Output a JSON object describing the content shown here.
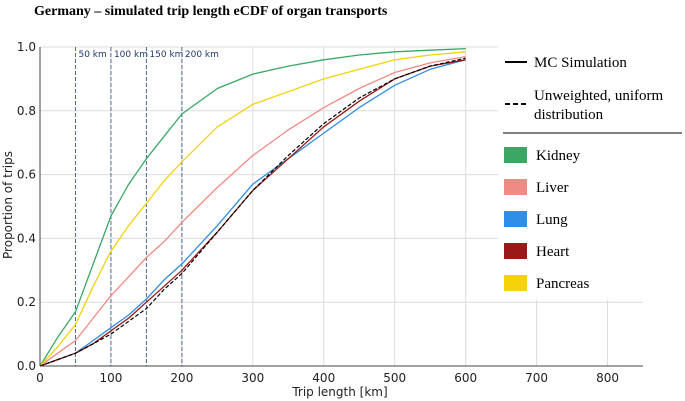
{
  "chart_data": {
    "type": "line",
    "title": "Germany – simulated  trip length  eCDF of organ transports",
    "xlabel": "Trip length [km]",
    "ylabel": "Proportion of trips",
    "xlim": [
      0,
      850
    ],
    "ylim": [
      0,
      1.0
    ],
    "x_ticks": [
      0,
      100,
      200,
      300,
      400,
      500,
      600,
      700,
      800
    ],
    "y_ticks": [
      0.0,
      0.2,
      0.4,
      0.6,
      0.8,
      1.0
    ],
    "y_tick_labels": [
      "0.0",
      "0.2",
      "0.4",
      "0.6",
      "0.8",
      "1.0"
    ],
    "grid": true,
    "reference_lines": [
      {
        "x": 50,
        "label": "50 km"
      },
      {
        "x": 100,
        "label": "100 km"
      },
      {
        "x": 150,
        "label": "150 km"
      },
      {
        "x": 200,
        "label": "200 km"
      }
    ],
    "legend": {
      "placement": "right",
      "line_styles": [
        {
          "label": "MC Simulation",
          "style": "solid"
        },
        {
          "label": "Unweighted,  uniform distribution",
          "label_lines": [
            "Unweighted,  uniform",
            "distribution"
          ],
          "style": "dashed"
        }
      ],
      "organs": [
        "Kidney",
        "Liver",
        "Lung",
        "Heart",
        "Pancreas"
      ]
    },
    "series": [
      {
        "name": "Kidney",
        "color": "#3aa864",
        "x": [
          0,
          25,
          50,
          75,
          100,
          125,
          150,
          175,
          200,
          250,
          300,
          350,
          400,
          450,
          500,
          550,
          600
        ],
        "y": [
          0.0,
          0.09,
          0.17,
          0.32,
          0.47,
          0.57,
          0.65,
          0.72,
          0.79,
          0.87,
          0.915,
          0.94,
          0.96,
          0.975,
          0.985,
          0.99,
          0.995
        ]
      },
      {
        "name": "Liver",
        "color": "#f08a84",
        "x": [
          0,
          25,
          50,
          75,
          100,
          125,
          150,
          175,
          200,
          250,
          300,
          350,
          400,
          450,
          500,
          550,
          600
        ],
        "y": [
          0.0,
          0.04,
          0.08,
          0.15,
          0.22,
          0.28,
          0.34,
          0.39,
          0.45,
          0.56,
          0.66,
          0.74,
          0.81,
          0.87,
          0.92,
          0.95,
          0.97
        ]
      },
      {
        "name": "Lung",
        "color": "#2e8ee8",
        "x": [
          0,
          25,
          50,
          75,
          100,
          125,
          150,
          175,
          200,
          250,
          300,
          350,
          400,
          450,
          500,
          550,
          600
        ],
        "y": [
          0.0,
          0.02,
          0.04,
          0.08,
          0.12,
          0.16,
          0.21,
          0.27,
          0.32,
          0.44,
          0.57,
          0.65,
          0.73,
          0.81,
          0.88,
          0.93,
          0.96
        ]
      },
      {
        "name": "Heart",
        "color": "#9a1818",
        "x": [
          0,
          25,
          50,
          75,
          100,
          125,
          150,
          175,
          200,
          250,
          300,
          350,
          400,
          450,
          500,
          550,
          600
        ],
        "y": [
          0.0,
          0.02,
          0.04,
          0.07,
          0.11,
          0.15,
          0.2,
          0.25,
          0.3,
          0.42,
          0.55,
          0.65,
          0.75,
          0.83,
          0.9,
          0.94,
          0.96
        ]
      },
      {
        "name": "Pancreas",
        "color": "#f5d20a",
        "x": [
          0,
          25,
          50,
          75,
          100,
          125,
          150,
          175,
          200,
          250,
          300,
          350,
          400,
          450,
          500,
          550,
          600
        ],
        "y": [
          0.0,
          0.06,
          0.13,
          0.25,
          0.36,
          0.44,
          0.51,
          0.58,
          0.64,
          0.75,
          0.82,
          0.86,
          0.9,
          0.93,
          0.96,
          0.975,
          0.985
        ]
      },
      {
        "name": "Unweighted,  uniform distribution",
        "color": "#000000",
        "dashed": true,
        "x": [
          0,
          25,
          50,
          75,
          100,
          125,
          150,
          175,
          200,
          250,
          300,
          350,
          400,
          450,
          500,
          550,
          600
        ],
        "y": [
          0.0,
          0.02,
          0.04,
          0.07,
          0.1,
          0.14,
          0.18,
          0.24,
          0.29,
          0.42,
          0.55,
          0.66,
          0.76,
          0.84,
          0.9,
          0.94,
          0.965
        ]
      }
    ]
  }
}
